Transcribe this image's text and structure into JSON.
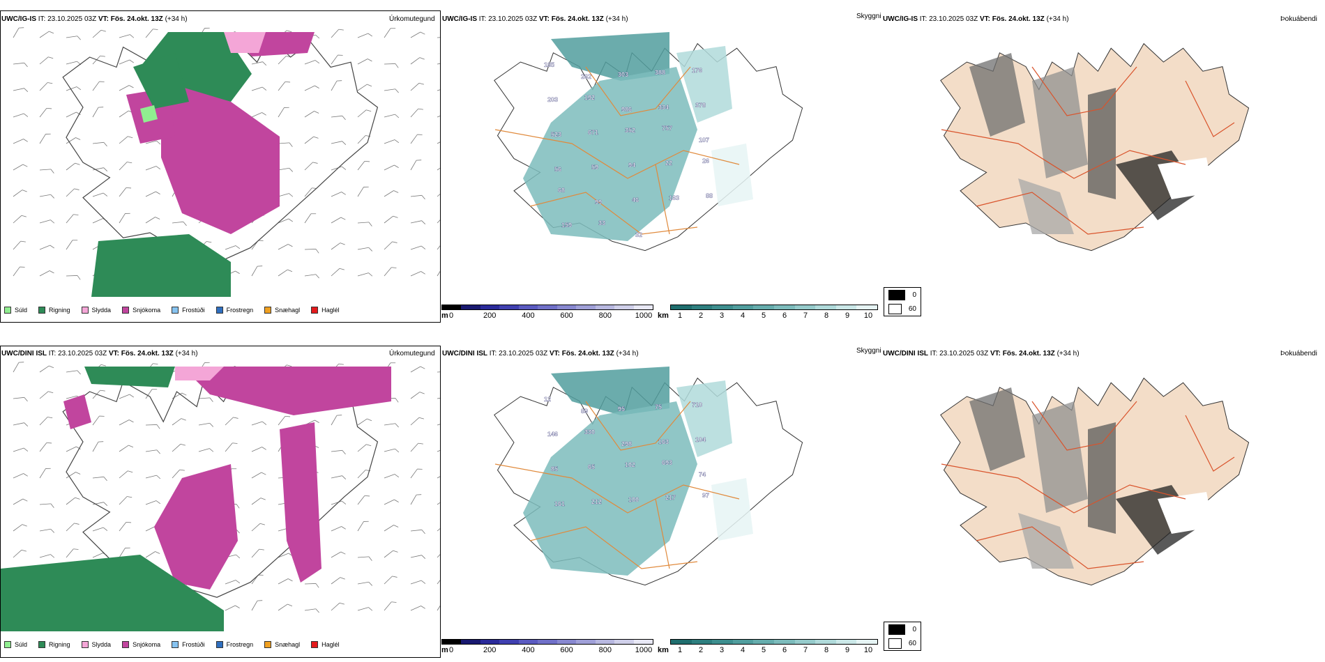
{
  "rows": [
    {
      "model_label": "UWC/IG-IS",
      "it_label": "IT: 23.10.2025 03Z",
      "vt_label": "VT: Fös. 24.okt. 13Z",
      "offset_label": "(+34 h)"
    },
    {
      "model_label": "UWC/DINI ISL",
      "it_label": "IT: 23.10.2025 03Z",
      "vt_label": "VT: Fös. 24.okt. 13Z",
      "offset_label": "(+34 h)"
    }
  ],
  "panel_titles": {
    "precip_type": "Úrkomutegund",
    "cloud": "Skyggni",
    "fog": "Þokuábendi"
  },
  "precip_legend": [
    {
      "label": "Súld",
      "color": "#90ee90"
    },
    {
      "label": "Rigning",
      "color": "#2e8b57"
    },
    {
      "label": "Slydda",
      "color": "#f4a6d7"
    },
    {
      "label": "Snjókoma",
      "color": "#c1459e"
    },
    {
      "label": "Frostúði",
      "color": "#87c3f0"
    },
    {
      "label": "Frostregn",
      "color": "#2f6fbf"
    },
    {
      "label": "Snæhagl",
      "color": "#f0a020"
    },
    {
      "label": "Haglél",
      "color": "#e31a1c"
    }
  ],
  "height_bar": {
    "unit": "m",
    "ticks": [
      "0",
      "200",
      "400",
      "600",
      "800",
      "1000"
    ],
    "colors": [
      "#000000",
      "#191970",
      "#2a2a9a",
      "#4040b0",
      "#5a5ac0",
      "#7070c8",
      "#8888d0",
      "#a0a0d8",
      "#b8b8e0",
      "#d0d0ea",
      "#e8e8f5"
    ]
  },
  "visibility_bar": {
    "unit": "km",
    "ticks": [
      "1",
      "2",
      "3",
      "4",
      "5",
      "6",
      "7",
      "8",
      "9",
      "10"
    ],
    "colors": [
      "#1f6e6e",
      "#2e7f7f",
      "#3e8f8f",
      "#519e9e",
      "#66adad",
      "#7dbcbc",
      "#96cbcb",
      "#b0dada",
      "#cbe8e8",
      "#e6f4f4"
    ]
  },
  "fog_legend": [
    {
      "label": "0",
      "color": "#000000"
    },
    {
      "label": "60",
      "color": "#ffffff"
    }
  ],
  "cloud_base_labels": {
    "row1": [
      "185",
      "262",
      "303",
      "388",
      "176",
      "203",
      "192",
      "986",
      "334",
      "378",
      "523",
      "671",
      "352",
      "757",
      "107",
      "56",
      "59",
      "94",
      "22",
      "26",
      "68",
      "99",
      "46",
      "163",
      "88",
      "159",
      "33",
      "32"
    ],
    "row2": [
      "12",
      "89",
      "95",
      "75",
      "710",
      "146",
      "330",
      "298",
      "163",
      "104",
      "85",
      "65",
      "102",
      "693",
      "74",
      "161",
      "212",
      "100",
      "217",
      "97"
    ]
  }
}
